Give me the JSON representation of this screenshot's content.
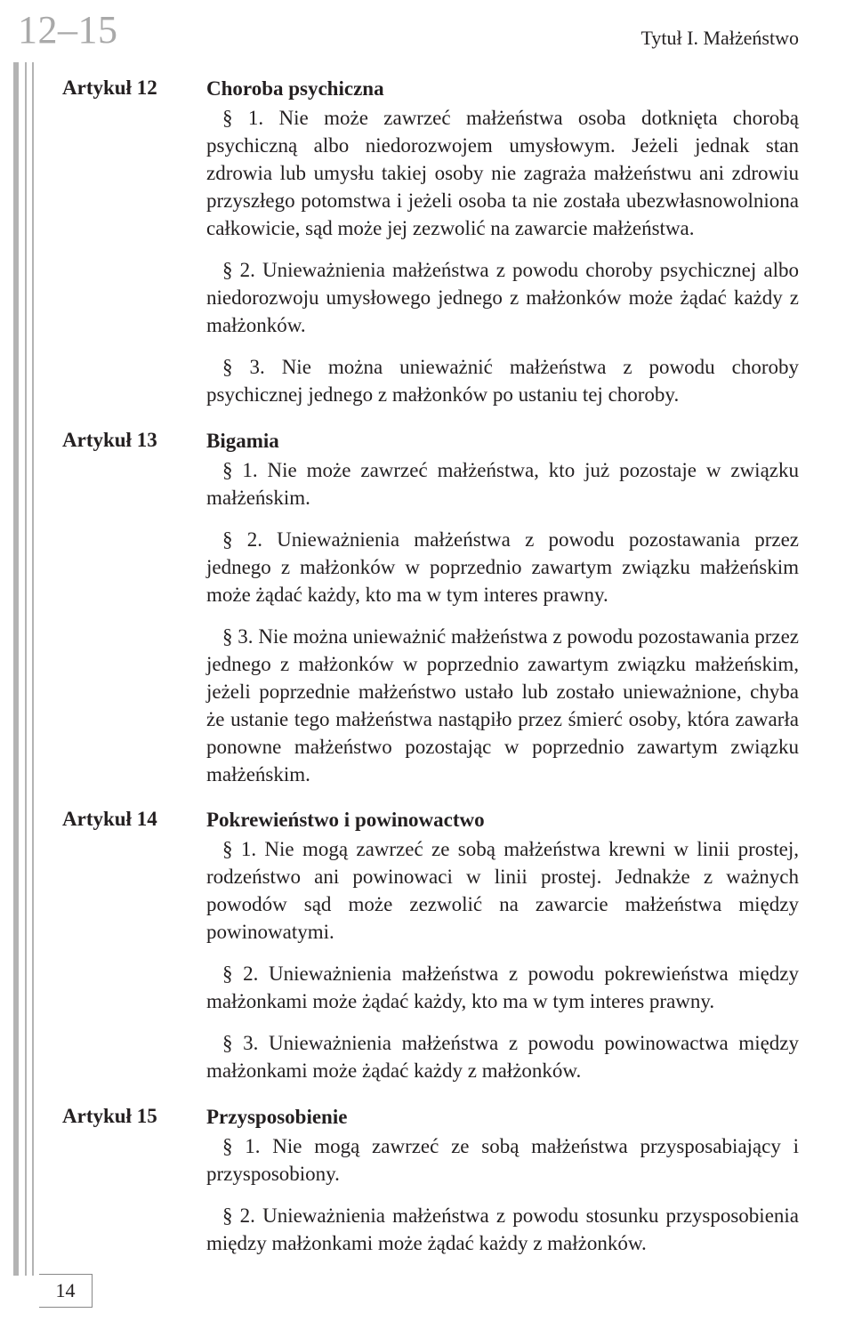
{
  "page_top": "12–15",
  "header_right": "Tytuł I. Małżeństwo",
  "page_bottom": "14",
  "articles": [
    {
      "label": "Artykuł 12",
      "title": "Choroba psychiczna",
      "paras": [
        "§ 1. Nie może zawrzeć małżeństwa osoba dotknięta chorobą psychiczną albo niedorozwojem umysłowym. Jeżeli jednak stan zdrowia lub umysłu takiej osoby nie zagraża małżeństwu ani zdrowiu przyszłego potomstwa i jeżeli osoba ta nie została ubezwłasnowolniona całkowicie, sąd może jej zezwolić na zawarcie małżeństwa.",
        "§ 2. Unieważnienia małżeństwa z powodu choroby psychicznej albo niedorozwoju umysłowego jednego z małżonków może żądać każdy z małżonków.",
        "§ 3. Nie można unieważnić małżeństwa z powodu choroby psychicznej jednego z małżonków po ustaniu tej choroby."
      ]
    },
    {
      "label": "Artykuł 13",
      "title": "Bigamia",
      "paras": [
        "§ 1. Nie może zawrzeć małżeństwa, kto już pozostaje w związku małżeńskim.",
        "§ 2. Unieważnienia małżeństwa z powodu pozostawania przez jednego z małżonków w poprzednio zawartym związku małżeńskim może żądać każdy, kto ma w tym interes prawny.",
        "§ 3. Nie można unieważnić małżeństwa z powodu pozostawania przez jednego z małżonków w poprzednio zawartym związku małżeńskim, jeżeli poprzednie małżeństwo ustało lub zostało unieważnione, chyba że ustanie tego małżeństwa nastąpiło przez śmierć osoby, która zawarła ponowne małżeństwo pozostając w poprzednio zawartym związku małżeńskim."
      ]
    },
    {
      "label": "Artykuł 14",
      "title": "Pokrewieństwo i powinowactwo",
      "paras": [
        "§ 1. Nie mogą zawrzeć ze sobą małżeństwa krewni w linii prostej, rodzeństwo ani powinowaci w linii prostej. Jednakże z ważnych powodów sąd może zezwolić na zawarcie małżeństwa między powinowatymi.",
        "§ 2. Unieważnienia małżeństwa z powodu pokrewieństwa między małżonkami może żądać każdy, kto ma w tym interes prawny.",
        "§ 3. Unieważnienia małżeństwa z powodu powinowactwa między małżonkami może żądać każdy z małżonków."
      ]
    },
    {
      "label": "Artykuł 15",
      "title": "Przysposobienie",
      "paras": [
        "§ 1. Nie mogą zawrzeć ze sobą małżeństwa przysposabiający i przysposobiony.",
        "§ 2. Unieważnienia małżeństwa z powodu stosunku przysposobienia między małżonkami może żądać każdy z małżonków."
      ]
    }
  ]
}
